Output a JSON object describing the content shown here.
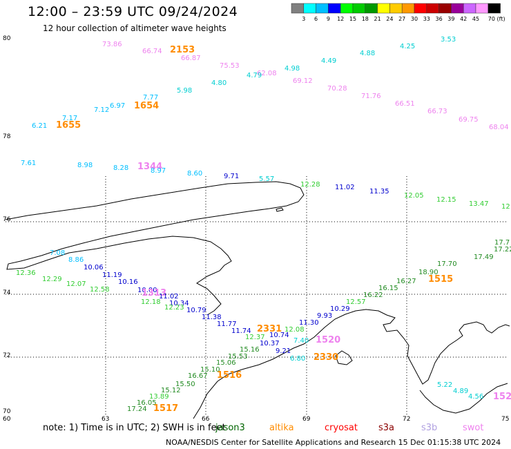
{
  "header": {
    "title": "12:00 – 23:59 UTC 09/24/2024",
    "subtitle": "12 hour collection of altimeter wave heights"
  },
  "scale": {
    "labels": [
      "3",
      "6",
      "9",
      "12",
      "15",
      "18",
      "21",
      "24",
      "27",
      "30",
      "33",
      "36",
      "39",
      "42",
      "45",
      "70 (ft)"
    ],
    "colors": [
      "#808080",
      "#00ffff",
      "#00bfff",
      "#0000ff",
      "#00ff00",
      "#00cc00",
      "#009900",
      "#ffff00",
      "#ffcc00",
      "#ff9900",
      "#ff0000",
      "#cc0000",
      "#990000",
      "#990099",
      "#cc66ff",
      "#ff99ff",
      "#000000"
    ]
  },
  "axes": {
    "y_labels": [
      "80",
      "78",
      "76",
      "74",
      "72",
      "70"
    ],
    "x_labels": [
      "60",
      "63",
      "66",
      "69",
      "72",
      "75"
    ]
  },
  "observations": [
    {
      "text": "73.86",
      "color": "#ee82ee"
    },
    {
      "text": "66.74",
      "color": "#ee82ee"
    },
    {
      "text": "2153",
      "color": "#ff8c00"
    },
    {
      "text": "66.87",
      "color": "#ee82ee"
    },
    {
      "text": "75.53",
      "color": "#ee82ee"
    },
    {
      "text": "62.08",
      "color": "#ee82ee"
    },
    {
      "text": "4.79",
      "color": "#00ced1"
    },
    {
      "text": "4.98",
      "color": "#00ced1"
    },
    {
      "text": "4.49",
      "color": "#00ced1"
    },
    {
      "text": "4.88",
      "color": "#00ced1"
    },
    {
      "text": "4.25",
      "color": "#00ced1"
    },
    {
      "text": "3.53",
      "color": "#00ced1"
    },
    {
      "text": "69.12",
      "color": "#ee82ee"
    },
    {
      "text": "70.28",
      "color": "#ee82ee"
    },
    {
      "text": "71.76",
      "color": "#ee82ee"
    },
    {
      "text": "66.51",
      "color": "#ee82ee"
    },
    {
      "text": "66.73",
      "color": "#ee82ee"
    },
    {
      "text": "69.75",
      "color": "#ee82ee"
    },
    {
      "text": "68.04",
      "color": "#ee82ee"
    },
    {
      "text": "4.80",
      "color": "#00ced1"
    },
    {
      "text": "5.98",
      "color": "#00ced1"
    },
    {
      "text": "7.77",
      "color": "#00bfff"
    },
    {
      "text": "1654",
      "color": "#ff8c00"
    },
    {
      "text": "6.97",
      "color": "#00bfff"
    },
    {
      "text": "7.12",
      "color": "#00bfff"
    },
    {
      "text": "7.17",
      "color": "#00bfff"
    },
    {
      "text": "1655",
      "color": "#ff8c00"
    },
    {
      "text": "6.21",
      "color": "#00bfff"
    },
    {
      "text": "7.61",
      "color": "#00bfff"
    },
    {
      "text": "8.98",
      "color": "#00bfff"
    },
    {
      "text": "8.28",
      "color": "#00bfff"
    },
    {
      "text": "1344",
      "color": "#ee82ee"
    },
    {
      "text": "8.97",
      "color": "#00bfff"
    },
    {
      "text": "8.60",
      "color": "#00bfff"
    },
    {
      "text": "9.71",
      "color": "#0000cd"
    },
    {
      "text": "5.57",
      "color": "#00ced1"
    },
    {
      "text": "12.28",
      "color": "#32cd32"
    },
    {
      "text": "11.02",
      "color": "#0000cd"
    },
    {
      "text": "11.35",
      "color": "#0000cd"
    },
    {
      "text": "12.05",
      "color": "#32cd32"
    },
    {
      "text": "12.15",
      "color": "#32cd32"
    },
    {
      "text": "13.47",
      "color": "#32cd32"
    },
    {
      "text": "12",
      "color": "#32cd32"
    },
    {
      "text": "7.08",
      "color": "#00bfff"
    },
    {
      "text": "8.86",
      "color": "#00bfff"
    },
    {
      "text": "10.06",
      "color": "#0000cd"
    },
    {
      "text": "11.19",
      "color": "#0000cd"
    },
    {
      "text": "10.16",
      "color": "#0000cd"
    },
    {
      "text": "12.36",
      "color": "#32cd32"
    },
    {
      "text": "12.29",
      "color": "#32cd32"
    },
    {
      "text": "12.07",
      "color": "#32cd32"
    },
    {
      "text": "12.58",
      "color": "#32cd32"
    },
    {
      "text": "10.00",
      "color": "#0000cd"
    },
    {
      "text": "1313",
      "color": "#ee82ee"
    },
    {
      "text": "11.02",
      "color": "#0000cd"
    },
    {
      "text": "12.18",
      "color": "#32cd32"
    },
    {
      "text": "10.34",
      "color": "#0000cd"
    },
    {
      "text": "12.23",
      "color": "#32cd32"
    },
    {
      "text": "10.79",
      "color": "#0000cd"
    },
    {
      "text": "11.38",
      "color": "#0000cd"
    },
    {
      "text": "11.77",
      "color": "#0000cd"
    },
    {
      "text": "11.74",
      "color": "#0000cd"
    },
    {
      "text": "2331",
      "color": "#ff8c00"
    },
    {
      "text": "12.37",
      "color": "#32cd32"
    },
    {
      "text": "12.08",
      "color": "#32cd32"
    },
    {
      "text": "10.74",
      "color": "#0000cd"
    },
    {
      "text": "10.37",
      "color": "#0000cd"
    },
    {
      "text": "7.40",
      "color": "#00ced1"
    },
    {
      "text": "11.30",
      "color": "#0000cd"
    },
    {
      "text": "9.93",
      "color": "#0000cd"
    },
    {
      "text": "10.29",
      "color": "#0000cd"
    },
    {
      "text": "12.57",
      "color": "#32cd32"
    },
    {
      "text": "16.22",
      "color": "#228b22"
    },
    {
      "text": "16.15",
      "color": "#228b22"
    },
    {
      "text": "16.27",
      "color": "#228b22"
    },
    {
      "text": "18.90",
      "color": "#228b22"
    },
    {
      "text": "1515",
      "color": "#ff8c00"
    },
    {
      "text": "17.70",
      "color": "#228b22"
    },
    {
      "text": "17.49",
      "color": "#228b22"
    },
    {
      "text": "17.22",
      "color": "#228b22"
    },
    {
      "text": "17.7",
      "color": "#228b22"
    },
    {
      "text": "1520",
      "color": "#ee82ee"
    },
    {
      "text": "9.21",
      "color": "#0000cd"
    },
    {
      "text": "6.80",
      "color": "#00ced1"
    },
    {
      "text": "2330",
      "color": "#ff8c00"
    },
    {
      "text": "15.16",
      "color": "#228b22"
    },
    {
      "text": "15.53",
      "color": "#228b22"
    },
    {
      "text": "15.06",
      "color": "#228b22"
    },
    {
      "text": "15.10",
      "color": "#228b22"
    },
    {
      "text": "16.67",
      "color": "#228b22"
    },
    {
      "text": "1516",
      "color": "#ff8c00"
    },
    {
      "text": "15.50",
      "color": "#228b22"
    },
    {
      "text": "15.12",
      "color": "#228b22"
    },
    {
      "text": "13.89",
      "color": "#32cd32"
    },
    {
      "text": "16.05",
      "color": "#228b22"
    },
    {
      "text": "17.24",
      "color": "#228b22"
    },
    {
      "text": "1517",
      "color": "#ff8c00"
    },
    {
      "text": "5.22",
      "color": "#00ced1"
    },
    {
      "text": "4.89",
      "color": "#00ced1"
    },
    {
      "text": "4.56",
      "color": "#00ced1"
    },
    {
      "text": "152",
      "color": "#ee82ee"
    }
  ],
  "footer": {
    "note": "note:  1) Time is in UTC;  2) SWH is in feet",
    "satellites": [
      {
        "name": "jason3",
        "color": "#006400"
      },
      {
        "name": "altika",
        "color": "#ff8c00"
      },
      {
        "name": "cryosat",
        "color": "#ff0000"
      },
      {
        "name": "s3a",
        "color": "#8b0000"
      },
      {
        "name": "s3b",
        "color": "#b0a0e0"
      },
      {
        "name": "swot",
        "color": "#ee82ee"
      }
    ],
    "credit": "NOAA/NESDIS Center for Satellite Applications and Research     15 Dec 01:15:38 UTC 2024"
  }
}
